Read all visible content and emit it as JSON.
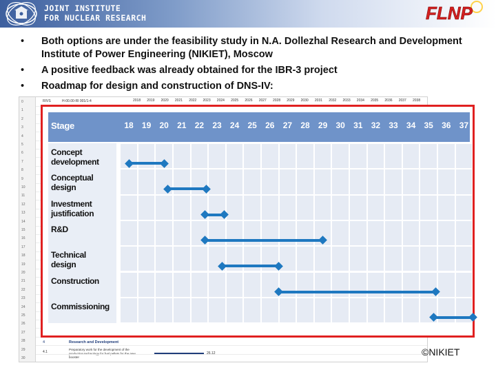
{
  "header": {
    "institute_line1": "JOINT INSTITUTE",
    "institute_line2": "FOR NUCLEAR RESEARCH",
    "lab_logo_text": "FLNP",
    "left_logo_icon": "jinr-emblem-icon"
  },
  "bullets": [
    {
      "text": "Both options are under the feasibility study in N.A. Dollezhal Research and Development Institute of Power Engineering (NIKIET), Moscow"
    },
    {
      "text": "A positive feedback was already obtained for the IBR-3 project"
    },
    {
      "text": "Roadmap for design and construction of DNS-IV:"
    }
  ],
  "gantt": {
    "stage_header": "Stage",
    "columns": [
      "18",
      "19",
      "20",
      "21",
      "22",
      "23",
      "24",
      "25",
      "26",
      "27",
      "28",
      "29",
      "30",
      "31",
      "32",
      "33",
      "34",
      "35",
      "36",
      "37"
    ],
    "stages": [
      {
        "label": "Concept development",
        "start": "18",
        "end": "20"
      },
      {
        "label": "Conceptual design",
        "start": "20.2",
        "end": "22.4"
      },
      {
        "label": "Investment justification",
        "start": "22.3",
        "end": "23.4"
      },
      {
        "label": "R&D",
        "start": "22.3",
        "end": "29"
      },
      {
        "label": "Technical design",
        "start": "23.3",
        "end": "26.5"
      },
      {
        "label": "Construction",
        "start": "26.5",
        "end": "35.4"
      },
      {
        "label": "Commissioning",
        "start": "35.3",
        "end": "37.5"
      }
    ],
    "colors": {
      "header": "#6f93c9",
      "bar": "#1e78c0",
      "frame": "#e02020",
      "cell": "#e6ebf4"
    }
  },
  "background_sheet": {
    "code_a": "RIVS",
    "code_b": "H-00.00-RI 001/1-4",
    "years": [
      "2018",
      "2019",
      "2020",
      "2021",
      "2022",
      "2023",
      "2024",
      "2025",
      "2026",
      "2027",
      "2028",
      "2029",
      "2030",
      "2031",
      "2032",
      "2033",
      "2034",
      "2035",
      "2036",
      "2037",
      "2038"
    ],
    "section_num": "4",
    "section_title": "Research and Development",
    "sub_num": "4.1",
    "sub_text": "Preparatory work for the development of the production technology for fuel pellets for the new booster",
    "sub_date": "26.12"
  },
  "credit": "©NIKIET"
}
